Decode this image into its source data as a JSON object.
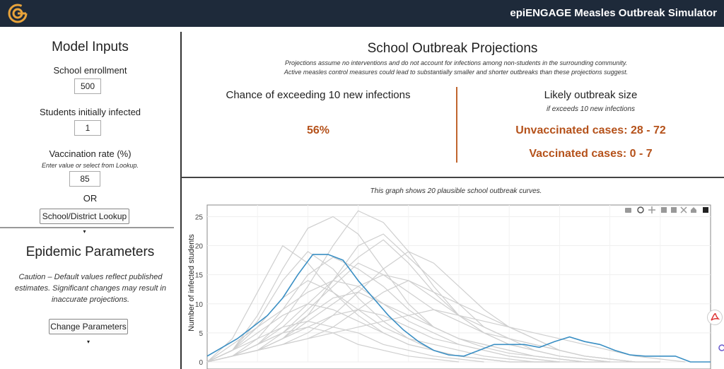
{
  "app": {
    "title": "epiENGAGE Measles Outbreak Simulator"
  },
  "inputs": {
    "title": "Model Inputs",
    "enrollment_label": "School enrollment",
    "enrollment_value": "500",
    "initial_label": "Students initially infected",
    "initial_value": "1",
    "vax_label": "Vaccination rate (%)",
    "vax_note": "Enter value or select from Lookup.",
    "vax_value": "85",
    "or_label": "OR",
    "lookup_button": "School/District Lookup"
  },
  "epidemic": {
    "title": "Epidemic Parameters",
    "caution": "Caution – Default values reflect published estimates. Significant changes may result in inaccurate projections.",
    "change_button": "Change Parameters"
  },
  "projections": {
    "title": "School Outbreak Projections",
    "note_line1": "Projections assume no interventions and do not account for infections among non-students in the surrounding community.",
    "note_line2": "Active measles control measures could lead to substantially smaller and shorter outbreaks than these projections suggest.",
    "chance_label": "Chance of exceeding 10 new infections",
    "chance_value": "56%",
    "size_label": "Likely outbreak size",
    "size_note": "if exceeds 10 new infections",
    "unvax_cases": "Unvaccinated cases: 28 - 72",
    "vax_cases": "Vaccinated cases: 0 - 7"
  },
  "graph": {
    "caption": "This graph shows 20 plausible school outbreak curves."
  },
  "chart_data": {
    "type": "line",
    "title": "",
    "xlabel": "",
    "ylabel": "Number of infected students",
    "ylim": [
      0,
      27
    ],
    "yticks": [
      "0",
      "5",
      "10",
      "15",
      "20",
      "25"
    ],
    "xlim": [
      0,
      100
    ],
    "highlight_color": "#3a8fc4",
    "gray_color": "#cfcfcf",
    "highlight": {
      "name": "highlighted outbreak",
      "x": [
        0,
        3,
        6,
        9,
        12,
        15,
        18,
        21,
        24,
        27,
        30,
        33,
        36,
        39,
        42,
        45,
        48,
        51,
        54,
        57,
        60,
        63,
        66,
        69,
        72,
        75,
        78,
        81,
        84,
        87,
        90,
        93,
        96,
        100
      ],
      "y": [
        1,
        2.5,
        4,
        6,
        8,
        11,
        15,
        18.5,
        18.5,
        17.5,
        14,
        11,
        8,
        5.5,
        3.5,
        2,
        1.2,
        1,
        2,
        3,
        3,
        3,
        2.5,
        3.5,
        4.3,
        3.5,
        3,
        2,
        1.2,
        1,
        1,
        1,
        0,
        0
      ]
    },
    "gray_series": [
      {
        "x": [
          0,
          5,
          10,
          15,
          20,
          25,
          30,
          35,
          40,
          45,
          50,
          55,
          60,
          65,
          70,
          75,
          80
        ],
        "y": [
          0,
          2,
          8,
          16,
          23,
          25,
          22,
          16,
          10,
          6,
          4,
          2.5,
          1.5,
          1,
          0.5,
          0,
          0
        ]
      },
      {
        "x": [
          0,
          5,
          10,
          15,
          20,
          25,
          30,
          35,
          40,
          45,
          50,
          55,
          60,
          65,
          70,
          75,
          80,
          85
        ],
        "y": [
          0,
          1,
          3,
          7,
          13,
          20,
          26,
          24,
          19,
          13,
          8,
          5,
          3,
          2,
          1,
          0.5,
          0,
          0
        ]
      },
      {
        "x": [
          0,
          5,
          10,
          15,
          20,
          25,
          30,
          35,
          40,
          45,
          50,
          55,
          60,
          65,
          70
        ],
        "y": [
          0,
          4,
          12,
          20,
          17,
          12,
          8,
          5,
          3,
          2,
          1,
          0.5,
          0,
          0,
          0
        ]
      },
      {
        "x": [
          0,
          5,
          10,
          15,
          20,
          25,
          30,
          35,
          40,
          45,
          50,
          55,
          60,
          65,
          70,
          75,
          80,
          85,
          90
        ],
        "y": [
          0,
          1,
          2,
          4,
          8,
          14,
          20,
          22,
          18,
          14,
          10,
          6,
          4,
          3,
          2,
          1,
          0.5,
          0,
          0
        ]
      },
      {
        "x": [
          0,
          5,
          10,
          15,
          20,
          25,
          30,
          35,
          40,
          45,
          50,
          55,
          60,
          65,
          70
        ],
        "y": [
          0,
          2,
          7,
          14,
          19,
          16,
          11,
          7,
          4,
          2,
          1,
          0.5,
          0,
          0,
          0
        ]
      },
      {
        "x": [
          0,
          5,
          10,
          15,
          20,
          25,
          30,
          35,
          40,
          45,
          50,
          55,
          60,
          65,
          70,
          75
        ],
        "y": [
          0,
          3,
          6,
          9,
          12,
          14,
          13,
          10,
          7,
          5,
          3,
          2,
          1,
          0.5,
          0,
          0
        ]
      },
      {
        "x": [
          0,
          5,
          10,
          15,
          20,
          25,
          30,
          35,
          40,
          45,
          50,
          55,
          60,
          65,
          70,
          75,
          80
        ],
        "y": [
          0,
          1,
          4,
          9,
          15,
          18,
          16,
          13,
          9,
          6,
          4,
          3,
          2,
          1,
          0.5,
          0,
          0
        ]
      },
      {
        "x": [
          0,
          5,
          10,
          15,
          20,
          25,
          30,
          35,
          40,
          45,
          50,
          55,
          60
        ],
        "y": [
          0,
          2,
          5,
          8,
          10,
          9,
          7,
          5,
          3,
          2,
          1,
          0.5,
          0
        ]
      },
      {
        "x": [
          0,
          5,
          10,
          15,
          20,
          25,
          30,
          35,
          40,
          45,
          50,
          55,
          60,
          65,
          70,
          75,
          80,
          85
        ],
        "y": [
          0,
          1,
          2,
          5,
          9,
          13,
          17,
          15,
          12,
          9,
          7,
          5,
          4,
          3,
          2,
          1,
          0.5,
          0
        ]
      },
      {
        "x": [
          0,
          5,
          10,
          15,
          20,
          25,
          30,
          35,
          40,
          45,
          50,
          55,
          60,
          65,
          70
        ],
        "y": [
          0,
          2,
          6,
          11,
          14,
          12,
          9,
          6,
          4,
          3,
          2,
          1,
          0.5,
          0,
          0
        ]
      },
      {
        "x": [
          0,
          5,
          10,
          15,
          20,
          25,
          30,
          35,
          40,
          45,
          50,
          55,
          60,
          65,
          70,
          75,
          80
        ],
        "y": [
          0,
          1,
          3,
          6,
          10,
          14,
          18,
          21,
          17,
          12,
          8,
          5,
          3,
          2,
          1,
          0.5,
          0
        ]
      },
      {
        "x": [
          0,
          5,
          10,
          15,
          20,
          25,
          30,
          35,
          40,
          45,
          50,
          55
        ],
        "y": [
          0,
          2,
          4,
          6,
          7,
          6,
          5,
          3,
          2,
          1,
          0.5,
          0
        ]
      },
      {
        "x": [
          0,
          5,
          10,
          15,
          20,
          25,
          30,
          35,
          40,
          45,
          50,
          55,
          60,
          65,
          70,
          75,
          80,
          85,
          90
        ],
        "y": [
          0,
          1,
          2,
          3,
          5,
          8,
          12,
          16,
          19,
          17,
          13,
          9,
          6,
          4,
          2,
          1,
          0.5,
          0,
          0
        ]
      },
      {
        "x": [
          0,
          5,
          10,
          15,
          20,
          25,
          30,
          35,
          40,
          45,
          50,
          55,
          60,
          65,
          70,
          75
        ],
        "y": [
          0,
          1,
          3,
          5,
          8,
          11,
          12,
          10,
          8,
          6,
          4,
          3,
          2,
          1,
          0.5,
          0
        ]
      },
      {
        "x": [
          0,
          5,
          10,
          15,
          20,
          25,
          30,
          35,
          40,
          45,
          50,
          55,
          60,
          65,
          70,
          75,
          80
        ],
        "y": [
          0,
          1,
          2,
          4,
          7,
          10,
          13,
          15,
          14,
          11,
          8,
          6,
          4,
          2,
          1,
          0.5,
          0
        ]
      },
      {
        "x": [
          0,
          5,
          10,
          15,
          20,
          25,
          30,
          35,
          40,
          45,
          50
        ],
        "y": [
          0,
          1,
          3,
          5,
          6,
          5,
          3,
          2,
          1,
          0.5,
          0
        ]
      },
      {
        "x": [
          0,
          5,
          10,
          15,
          20,
          25,
          30,
          35,
          40,
          45,
          50,
          55,
          60,
          65,
          70,
          75,
          80,
          85
        ],
        "y": [
          0,
          1,
          2,
          3,
          4,
          6,
          9,
          12,
          14,
          12,
          10,
          8,
          6,
          4,
          2,
          1,
          0.5,
          0
        ]
      },
      {
        "x": [
          0,
          5,
          10,
          15,
          20,
          25,
          30,
          35,
          40,
          45,
          50,
          55,
          60,
          65,
          70
        ],
        "y": [
          0,
          1,
          2,
          4,
          6,
          8,
          9,
          8,
          6,
          4,
          3,
          2,
          1,
          0.5,
          0
        ]
      },
      {
        "x": [
          0,
          5,
          10,
          15,
          20,
          25,
          30,
          35,
          40,
          45,
          50,
          55,
          60,
          65,
          70,
          75,
          80,
          85,
          90,
          95
        ],
        "y": [
          0,
          1,
          2,
          3,
          4,
          5,
          6,
          7,
          8,
          9,
          8,
          7,
          6,
          5,
          4,
          3,
          2,
          1,
          0.5,
          0
        ]
      }
    ]
  }
}
